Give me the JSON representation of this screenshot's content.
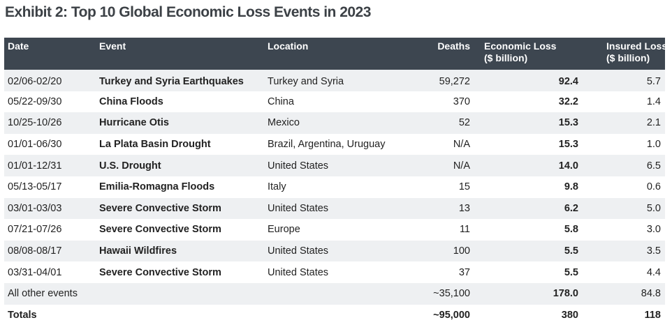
{
  "title": "Exhibit 2: Top 10 Global Economic Loss Events in 2023",
  "headers": {
    "date": "Date",
    "event": "Event",
    "location": "Location",
    "deaths": "Deaths",
    "economic_loss_line1": "Economic Loss",
    "economic_loss_line2": "($ billion)",
    "insured_loss_line1": "Insured Loss",
    "insured_loss_line2": "($ billion)"
  },
  "rows": [
    {
      "date": "02/06-02/20",
      "event": "Turkey and Syria Earthquakes",
      "location": "Turkey and Syria",
      "deaths": "59,272",
      "economic_loss": "92.4",
      "insured_loss": "5.7"
    },
    {
      "date": "05/22-09/30",
      "event": "China Floods",
      "location": "China",
      "deaths": "370",
      "economic_loss": "32.2",
      "insured_loss": "1.4"
    },
    {
      "date": "10/25-10/26",
      "event": "Hurricane Otis",
      "location": "Mexico",
      "deaths": "52",
      "economic_loss": "15.3",
      "insured_loss": "2.1"
    },
    {
      "date": "01/01-06/30",
      "event": "La Plata Basin Drought",
      "location": "Brazil, Argentina, Uruguay",
      "deaths": "N/A",
      "economic_loss": "15.3",
      "insured_loss": "1.0"
    },
    {
      "date": "01/01-12/31",
      "event": "U.S. Drought",
      "location": "United States",
      "deaths": "N/A",
      "economic_loss": "14.0",
      "insured_loss": "6.5"
    },
    {
      "date": "05/13-05/17",
      "event": "Emilia-Romagna Floods",
      "location": "Italy",
      "deaths": "15",
      "economic_loss": "9.8",
      "insured_loss": "0.6"
    },
    {
      "date": "03/01-03/03",
      "event": "Severe Convective Storm",
      "location": "United States",
      "deaths": "13",
      "economic_loss": "6.2",
      "insured_loss": "5.0"
    },
    {
      "date": "07/21-07/26",
      "event": "Severe Convective Storm",
      "location": "Europe",
      "deaths": "11",
      "economic_loss": "5.8",
      "insured_loss": "3.0"
    },
    {
      "date": "08/08-08/17",
      "event": "Hawaii Wildfires",
      "location": "United States",
      "deaths": "100",
      "economic_loss": "5.5",
      "insured_loss": "3.5"
    },
    {
      "date": "03/31-04/01",
      "event": "Severe Convective Storm",
      "location": "United States",
      "deaths": "37",
      "economic_loss": "5.5",
      "insured_loss": "4.4"
    }
  ],
  "other": {
    "label": "All other events",
    "deaths": "~35,100",
    "economic_loss": "178.0",
    "insured_loss": "84.8"
  },
  "totals": {
    "label": "Totals",
    "deaths": "~95,000",
    "economic_loss": "380",
    "insured_loss": "118"
  }
}
